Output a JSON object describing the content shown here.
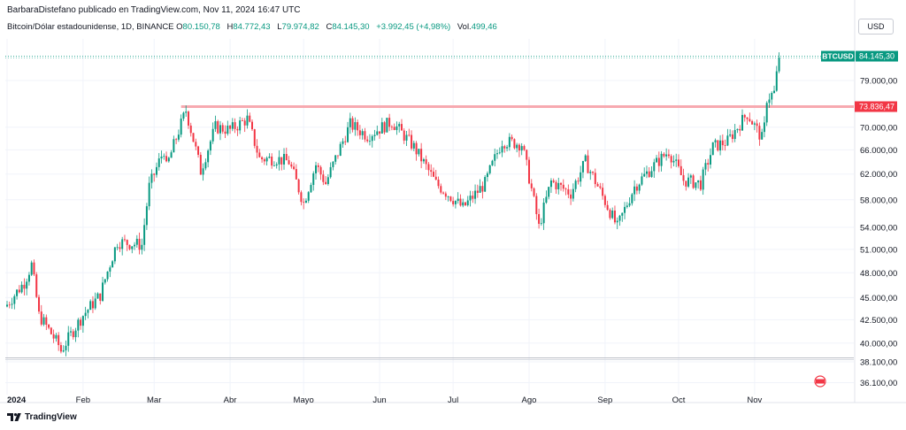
{
  "header": {
    "publisher_line": "BarbaraDistefano publicado en TradingView.com, Nov 11, 2024 16:47 UTC"
  },
  "legend": {
    "symbol": "Bitcoin/Dólar estadounidense, 1D, BINANCE",
    "o_label": "O",
    "o_value": "80.150,78",
    "h_label": "H",
    "h_value": "84.772,43",
    "l_label": "L",
    "l_value": "79.974,82",
    "c_label": "C",
    "c_value": "84.145,30",
    "change": "+3.992,45 (+4,98%)",
    "vol_label": "Vol.",
    "vol_value": "499,46"
  },
  "toolbar": {
    "currency_label": "USD"
  },
  "footer": {
    "brand": "TradingView"
  },
  "colors": {
    "up": "#089981",
    "down": "#f23645",
    "resistance": "#f7a9b0",
    "grid": "#f0f3fa"
  },
  "chart_data": {
    "type": "candlestick",
    "symbol_badge": "BTCUSD",
    "last_price_label": "84.145,30",
    "level_label": "73.836,47",
    "resistance_level": 73836.47,
    "support_level": 38500,
    "y_scale": "log",
    "ylim": [
      35000,
      88000
    ],
    "y_ticks": [
      {
        "value": 79000,
        "label": "79.000,00"
      },
      {
        "value": 70000,
        "label": "70.000,00"
      },
      {
        "value": 66000,
        "label": "66.000,00"
      },
      {
        "value": 62000,
        "label": "62.000,00"
      },
      {
        "value": 58000,
        "label": "58.000,00"
      },
      {
        "value": 54000,
        "label": "54.000,00"
      },
      {
        "value": 51000,
        "label": "51.000,00"
      },
      {
        "value": 48000,
        "label": "48.000,00"
      },
      {
        "value": 45000,
        "label": "45.000,00"
      },
      {
        "value": 42500,
        "label": "42.500,00"
      },
      {
        "value": 40000,
        "label": "40.000,00"
      },
      {
        "value": 38100,
        "label": "38.100,00"
      },
      {
        "value": 36100,
        "label": "36.100,00"
      }
    ],
    "x_ticks": [
      {
        "label": "2024",
        "date": "2024-01-01"
      },
      {
        "label": "Feb",
        "date": "2024-02-01"
      },
      {
        "label": "Mar",
        "date": "2024-03-01"
      },
      {
        "label": "Abr",
        "date": "2024-04-01"
      },
      {
        "label": "Mayo",
        "date": "2024-05-01"
      },
      {
        "label": "Jun",
        "date": "2024-06-01"
      },
      {
        "label": "Jul",
        "date": "2024-07-01"
      },
      {
        "label": "Ago",
        "date": "2024-08-01"
      },
      {
        "label": "Sep",
        "date": "2024-09-01"
      },
      {
        "label": "Oct",
        "date": "2024-10-01"
      },
      {
        "label": "Nov",
        "date": "2024-11-01"
      }
    ],
    "close_anchors": [
      [
        "2024-01-01",
        44200
      ],
      [
        "2024-01-08",
        46800
      ],
      [
        "2024-01-11",
        49000
      ],
      [
        "2024-01-14",
        43000
      ],
      [
        "2024-01-22",
        39800
      ],
      [
        "2024-01-23",
        39200
      ],
      [
        "2024-02-01",
        43000
      ],
      [
        "2024-02-08",
        45300
      ],
      [
        "2024-02-15",
        52000
      ],
      [
        "2024-02-25",
        51600
      ],
      [
        "2024-02-28",
        60000
      ],
      [
        "2024-03-05",
        66000
      ],
      [
        "2024-03-06",
        63000
      ],
      [
        "2024-03-14",
        73100
      ],
      [
        "2024-03-20",
        62500
      ],
      [
        "2024-03-26",
        70000
      ],
      [
        "2024-04-01",
        69500
      ],
      [
        "2024-04-08",
        71500
      ],
      [
        "2024-04-13",
        64500
      ],
      [
        "2024-04-20",
        64500
      ],
      [
        "2024-04-25",
        64000
      ],
      [
        "2024-05-01",
        57500
      ],
      [
        "2024-05-06",
        63500
      ],
      [
        "2024-05-10",
        60500
      ],
      [
        "2024-05-20",
        70500
      ],
      [
        "2024-05-27",
        68500
      ],
      [
        "2024-06-06",
        71000
      ],
      [
        "2024-06-15",
        66500
      ],
      [
        "2024-06-24",
        60500
      ],
      [
        "2024-07-05",
        56800
      ],
      [
        "2024-07-14",
        60500
      ],
      [
        "2024-07-21",
        67500
      ],
      [
        "2024-07-29",
        67000
      ],
      [
        "2024-08-05",
        54000
      ],
      [
        "2024-08-10",
        60800
      ],
      [
        "2024-08-18",
        59000
      ],
      [
        "2024-08-24",
        64000
      ],
      [
        "2024-08-31",
        58500
      ],
      [
        "2024-09-06",
        54000
      ],
      [
        "2024-09-13",
        60000
      ],
      [
        "2024-09-20",
        63000
      ],
      [
        "2024-09-27",
        65800
      ],
      [
        "2024-10-03",
        61000
      ],
      [
        "2024-10-10",
        60500
      ],
      [
        "2024-10-15",
        66500
      ],
      [
        "2024-10-21",
        67500
      ],
      [
        "2024-10-29",
        72500
      ],
      [
        "2024-11-04",
        68000
      ],
      [
        "2024-11-05",
        70000
      ],
      [
        "2024-11-06",
        75500
      ],
      [
        "2024-11-09",
        76500
      ],
      [
        "2024-11-10",
        80150
      ],
      [
        "2024-11-11",
        84145
      ]
    ]
  }
}
